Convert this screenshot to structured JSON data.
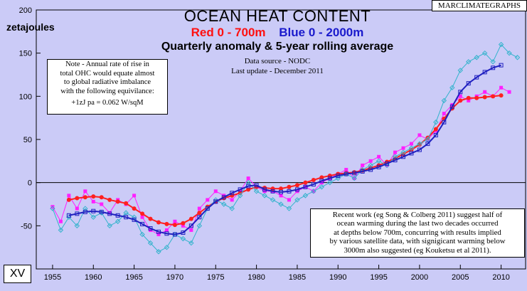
{
  "brand": "MARCLIMATEGRAPHS",
  "badge": "XV",
  "colors": {
    "red_series": "#ff2020",
    "blue_series": "#2020c0",
    "cyan_series": "#33b3cc",
    "magenta_series": "#ff20ff",
    "background": "#cbcbf7"
  },
  "chart_data": {
    "type": "line",
    "title": "OCEAN HEAT CONTENT",
    "subtitle_red": "Red  0 - 700m",
    "subtitle_blue": "Blue  0 - 2000m",
    "subtitle2": "Quarterly anomaly & 5-year rolling average",
    "source": "Data source - NODC",
    "update": "Last update - December 2011",
    "ylabel": "zetajoules",
    "xlim": [
      1953,
      2013
    ],
    "ylim": [
      -100,
      200
    ],
    "xticks": [
      1955,
      1960,
      1965,
      1970,
      1975,
      1980,
      1985,
      1990,
      1995,
      2000,
      2005,
      2010
    ],
    "yticks": [
      -50,
      0,
      50,
      100,
      150,
      200
    ],
    "grid": false,
    "series": [
      {
        "name": "Red  0 - 700m",
        "kind": "quarterly",
        "color": "#ff20ff",
        "x": [
          1955,
          1956,
          1957,
          1958,
          1959,
          1960,
          1961,
          1962,
          1963,
          1964,
          1965,
          1966,
          1967,
          1968,
          1969,
          1970,
          1971,
          1972,
          1973,
          1974,
          1975,
          1976,
          1977,
          1978,
          1979,
          1980,
          1981,
          1982,
          1983,
          1984,
          1985,
          1986,
          1987,
          1988,
          1989,
          1990,
          1991,
          1992,
          1993,
          1994,
          1995,
          1996,
          1997,
          1998,
          1999,
          2000,
          2001,
          2002,
          2003,
          2004,
          2005,
          2006,
          2007,
          2008,
          2009,
          2010,
          2011
        ],
        "y": [
          -28,
          -45,
          -15,
          -30,
          -10,
          -22,
          -25,
          -35,
          -20,
          -25,
          -15,
          -40,
          -55,
          -60,
          -55,
          -45,
          -50,
          -55,
          -30,
          -20,
          -10,
          -15,
          -20,
          -10,
          5,
          -5,
          -10,
          -10,
          -15,
          -20,
          -10,
          -5,
          -10,
          0,
          5,
          10,
          15,
          5,
          20,
          25,
          30,
          20,
          35,
          40,
          45,
          55,
          50,
          60,
          80,
          90,
          100,
          95,
          100,
          105,
          100,
          110,
          105
        ]
      },
      {
        "name": "Red 5-year average",
        "kind": "rolling",
        "color": "#ff2020",
        "x": [
          1957,
          1958,
          1959,
          1960,
          1961,
          1962,
          1963,
          1964,
          1965,
          1966,
          1967,
          1968,
          1969,
          1970,
          1971,
          1972,
          1973,
          1974,
          1975,
          1976,
          1977,
          1978,
          1979,
          1980,
          1981,
          1982,
          1983,
          1984,
          1985,
          1986,
          1987,
          1988,
          1989,
          1990,
          1991,
          1992,
          1993,
          1994,
          1995,
          1996,
          1997,
          1998,
          1999,
          2000,
          2001,
          2002,
          2003,
          2004,
          2005,
          2006,
          2007,
          2008,
          2009,
          2010
        ],
        "y": [
          -20,
          -18,
          -17,
          -16,
          -17,
          -20,
          -22,
          -24,
          -30,
          -36,
          -42,
          -46,
          -48,
          -49,
          -47,
          -42,
          -35,
          -28,
          -22,
          -18,
          -15,
          -12,
          -8,
          -5,
          -6,
          -7,
          -7,
          -5,
          -3,
          0,
          3,
          6,
          8,
          10,
          11,
          12,
          14,
          17,
          20,
          24,
          28,
          33,
          38,
          44,
          52,
          62,
          74,
          86,
          95,
          98,
          98,
          99,
          100,
          101
        ]
      },
      {
        "name": "Blue  0 - 2000m",
        "kind": "quarterly",
        "color": "#33b3cc",
        "x": [
          1955,
          1956,
          1957,
          1958,
          1959,
          1960,
          1961,
          1962,
          1963,
          1964,
          1965,
          1966,
          1967,
          1968,
          1969,
          1970,
          1971,
          1972,
          1973,
          1974,
          1975,
          1976,
          1977,
          1978,
          1979,
          1980,
          1981,
          1982,
          1983,
          1984,
          1985,
          1986,
          1987,
          1988,
          1989,
          1990,
          1991,
          1992,
          1993,
          1994,
          1995,
          1996,
          1997,
          1998,
          1999,
          2000,
          2001,
          2002,
          2003,
          2004,
          2005,
          2006,
          2007,
          2008,
          2009,
          2010,
          2011,
          2012
        ],
        "y": [
          -30,
          -55,
          -40,
          -50,
          -30,
          -40,
          -35,
          -50,
          -45,
          -35,
          -40,
          -60,
          -70,
          -80,
          -75,
          -60,
          -65,
          -70,
          -50,
          -30,
          -20,
          -25,
          -30,
          -15,
          0,
          -10,
          -15,
          -20,
          -25,
          -30,
          -20,
          -15,
          -10,
          -5,
          0,
          5,
          10,
          5,
          15,
          20,
          25,
          20,
          30,
          35,
          40,
          45,
          50,
          70,
          95,
          110,
          130,
          140,
          145,
          150,
          140,
          160,
          150,
          145
        ]
      },
      {
        "name": "Blue 5-year average",
        "kind": "rolling",
        "color": "#2020c0",
        "x": [
          1957,
          1958,
          1959,
          1960,
          1961,
          1962,
          1963,
          1964,
          1965,
          1966,
          1967,
          1968,
          1969,
          1970,
          1971,
          1972,
          1973,
          1974,
          1975,
          1976,
          1977,
          1978,
          1979,
          1980,
          1981,
          1982,
          1983,
          1984,
          1985,
          1986,
          1987,
          1988,
          1989,
          1990,
          1991,
          1992,
          1993,
          1994,
          1995,
          1996,
          1997,
          1998,
          1999,
          2000,
          2001,
          2002,
          2003,
          2004,
          2005,
          2006,
          2007,
          2008,
          2009,
          2010
        ],
        "y": [
          -38,
          -36,
          -34,
          -33,
          -34,
          -36,
          -38,
          -40,
          -43,
          -48,
          -53,
          -57,
          -59,
          -60,
          -58,
          -50,
          -40,
          -30,
          -22,
          -17,
          -12,
          -8,
          -4,
          -3,
          -8,
          -10,
          -11,
          -10,
          -8,
          -5,
          -2,
          2,
          5,
          8,
          10,
          11,
          13,
          15,
          18,
          22,
          26,
          30,
          34,
          38,
          45,
          55,
          70,
          88,
          105,
          115,
          122,
          128,
          133,
          136
        ]
      }
    ]
  },
  "note": {
    "line1": "Note - Annual rate of rise in",
    "line2": "total OHC would equate almost",
    "line3": "to global radiative imbalance",
    "line4": "with the following equivilance:",
    "equation": "+1zJ pa = 0.062 W/sqM"
  },
  "recent": {
    "line1": "Recent work (eg Song & Colberg 2011) suggest half of",
    "line2": "ocean warming during the last two decades occurred",
    "line3": "at depths below 700m, concurring with results implied",
    "line4": "by various satellite data, with signigicant warming below",
    "line5": "3000m also suggested (eg Kouketsu et al 2011)."
  }
}
